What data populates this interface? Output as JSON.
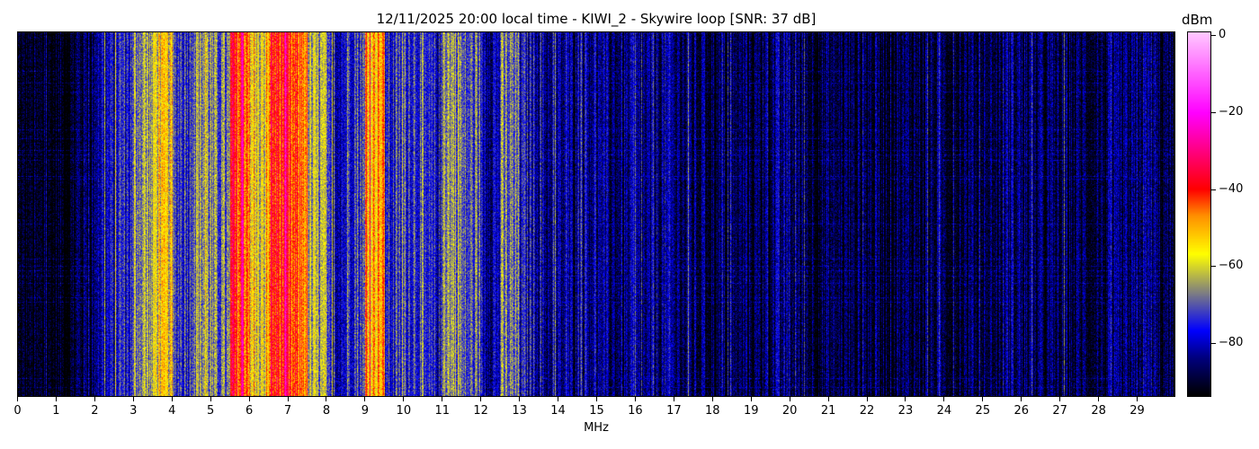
{
  "chart_data": {
    "type": "heatmap",
    "title": "12/11/2025 20:00 local time - KIWI_2 - Skywire loop [SNR: 37 dB]",
    "xlabel": "MHz",
    "xlim": [
      0,
      30
    ],
    "x_ticks": [
      "0",
      "1",
      "2",
      "3",
      "4",
      "5",
      "6",
      "7",
      "8",
      "9",
      "10",
      "11",
      "12",
      "13",
      "14",
      "15",
      "16",
      "17",
      "18",
      "19",
      "20",
      "21",
      "22",
      "23",
      "24",
      "25",
      "26",
      "27",
      "28",
      "29"
    ],
    "colorbar": {
      "label": "dBm",
      "range": [
        -94,
        1
      ],
      "ticks": [
        "0",
        "−20",
        "−40",
        "−60",
        "−80"
      ],
      "tick_values": [
        0,
        -20,
        -40,
        -60,
        -80
      ]
    },
    "colormap": [
      [
        -94,
        "#000000"
      ],
      [
        -84,
        "#000080"
      ],
      [
        -77,
        "#0000ff"
      ],
      [
        -67,
        "#808080"
      ],
      [
        -57,
        "#ffff00"
      ],
      [
        -47,
        "#ff9000"
      ],
      [
        -40,
        "#ff0000"
      ],
      [
        -20,
        "#ff00ff"
      ],
      [
        1,
        "#ffc8ff"
      ]
    ],
    "mean_level_profile": {
      "bin_width_mhz": 0.5,
      "start_mhz": 0,
      "values_dbm": [
        -94,
        -94,
        -94,
        -88,
        -80,
        -75,
        -65,
        -58,
        -72,
        -65,
        -70,
        -42,
        -60,
        -40,
        -45,
        -65,
        -78,
        -72,
        -50,
        -75,
        -72,
        -78,
        -65,
        -72,
        -80,
        -70,
        -78,
        -84,
        -85,
        -82,
        -86,
        -86,
        -87,
        -84,
        -87,
        -88,
        -89,
        -89,
        -89,
        -86,
        -88,
        -89,
        -89,
        -89,
        -89,
        -89,
        -89,
        -89,
        -89,
        -89,
        -89,
        -85,
        -89,
        -89,
        -89,
        -89,
        -89,
        -89,
        -85,
        -90
      ]
    }
  }
}
